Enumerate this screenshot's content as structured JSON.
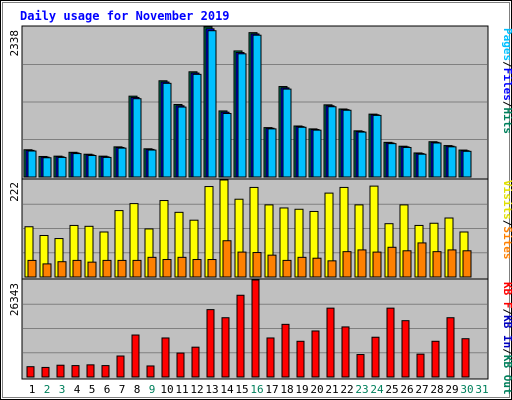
{
  "chart_data": {
    "type": "bar",
    "title": "Daily usage for November 2019",
    "categories": [
      "1",
      "2",
      "3",
      "4",
      "5",
      "6",
      "7",
      "8",
      "9",
      "10",
      "11",
      "12",
      "13",
      "14",
      "15",
      "16",
      "17",
      "18",
      "19",
      "20",
      "21",
      "22",
      "23",
      "24",
      "25",
      "26",
      "27",
      "28",
      "29",
      "30",
      "31"
    ],
    "weekend_days": [
      "2",
      "3",
      "9",
      "16",
      "23",
      "24",
      "30",
      "31"
    ],
    "panels": [
      {
        "name": "pages-files-hits",
        "max_label": "2338",
        "ylim": [
          0,
          2338
        ],
        "series": [
          {
            "name": "Hits",
            "color": "#00805c",
            "values": [
              425,
              320,
              325,
              385,
              355,
              325,
              470,
              1260,
              440,
              1500,
              1130,
              1640,
              2338,
              1030,
              1965,
              2250,
              770,
              1410,
              795,
              750,
              1125,
              1060,
              720,
              980,
              540,
              480,
              375,
              550,
              490,
              420,
              0
            ]
          },
          {
            "name": "Files",
            "color": "#0000ff",
            "values": [
              415,
              310,
              315,
              375,
              345,
              315,
              460,
              1240,
              430,
              1480,
              1110,
              1620,
              2310,
              1010,
              1940,
              2230,
              760,
              1390,
              785,
              740,
              1110,
              1050,
              710,
              970,
              530,
              470,
              365,
              540,
              480,
              410,
              0
            ]
          },
          {
            "name": "Pages",
            "color": "#00c0ff",
            "values": [
              405,
              300,
              305,
              365,
              335,
              305,
              450,
              1220,
              420,
              1460,
              1090,
              1600,
              2280,
              990,
              1920,
              2210,
              750,
              1370,
              775,
              730,
              1095,
              1040,
              700,
              960,
              520,
              460,
              355,
              530,
              470,
              400,
              0
            ]
          }
        ]
      },
      {
        "name": "visits-sites",
        "max_label": "222",
        "ylim": [
          0,
          222
        ],
        "series": [
          {
            "name": "Visits",
            "color": "#ffff00",
            "values": [
              115,
              95,
              88,
              118,
              116,
              103,
              152,
              168,
              110,
              175,
              148,
              130,
              207,
              222,
              178,
              205,
              165,
              158,
              155,
              150,
              192,
              205,
              165,
              208,
              122,
              165,
              118,
              123,
              135,
              103,
              0
            ]
          },
          {
            "name": "Sites",
            "color": "#ff8000",
            "values": [
              38,
              30,
              35,
              38,
              34,
              38,
              38,
              38,
              45,
              40,
              45,
              40,
              40,
              83,
              57,
              56,
              50,
              38,
              45,
              43,
              37,
              58,
              62,
              57,
              68,
              60,
              78,
              58,
              62,
              60,
              0
            ]
          }
        ]
      },
      {
        "name": "kb-in-out-files",
        "max_label": "26343",
        "ylim": [
          0,
          26343
        ],
        "series": [
          {
            "name": "KB F",
            "color": "#ff0000",
            "values": [
              2800,
              2600,
              3200,
              3100,
              3300,
              3100,
              5700,
              11400,
              3000,
              10600,
              6500,
              8100,
              18300,
              16100,
              22200,
              26343,
              10600,
              14300,
              9700,
              12500,
              18700,
              13600,
              6100,
              10800,
              18700,
              15300,
              6200,
              9700,
              16100,
              10400,
              0
            ]
          }
        ]
      }
    ],
    "legend_top": [
      "Pages",
      "/",
      "Files",
      "/",
      "Hits"
    ],
    "legend_mid": [
      "Visits",
      "/",
      "Sites"
    ],
    "legend_bottom": [
      "KB F",
      "/",
      "KB In",
      "/",
      "KB Out"
    ],
    "colors": {
      "hits": "#00805c",
      "files": "#0000ff",
      "pages": "#00c0ff",
      "visits": "#ffff00",
      "sites": "#ff8000",
      "kbf": "#ff0000",
      "kbin": "#0000c0",
      "kbout": "#00805c",
      "panel_bg": "#c0c0c0",
      "weekday_label": "#000000",
      "weekend_label": "#00805c",
      "title": "#0000ff"
    }
  }
}
